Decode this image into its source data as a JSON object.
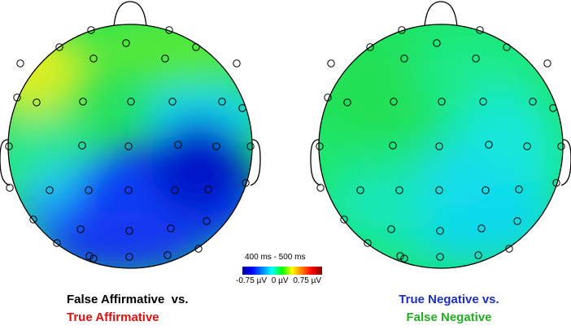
{
  "time_window": "400 ms - 500 ms",
  "colorbar": {
    "min_label": "-0.75 µV",
    "mid_label": "0 µV",
    "max_label": "0.75 µV",
    "min": -0.75,
    "max": 0.75,
    "colormap": [
      "#00008f",
      "#0000ff",
      "#00ffff",
      "#00ff00",
      "#ffff00",
      "#ff0000",
      "#800000"
    ]
  },
  "comparisons": [
    {
      "line1": "False Affirmative  vs.",
      "line1_color": "#000000",
      "line2": "True Affirmative",
      "line2_color": "#e01010",
      "map_summary": "blue negativity over right central-posterior, yellow-green left frontal"
    },
    {
      "line1": "True Negative vs.",
      "line1_color": "#1b2fc0",
      "line2": "False Negative",
      "line2_color": "#22b022",
      "map_summary": "mostly green with cyan over right-posterior"
    }
  ],
  "icons": {
    "nose": "nose-icon",
    "ears": "ear-icon",
    "electrodes": "electrode-icon"
  }
}
